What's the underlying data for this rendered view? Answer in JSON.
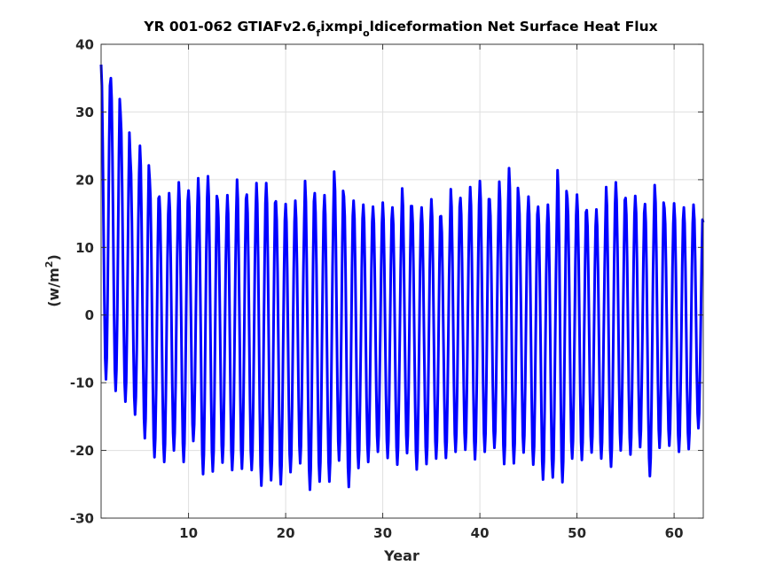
{
  "chart_data": {
    "type": "line",
    "title": {
      "part1": "YR 001-062 GTIAFv2.6",
      "sub1": "f",
      "part2": "ixmpi",
      "sub2": "o",
      "part3": "ldiceformation Net Surface Heat Flux"
    },
    "xlabel": "Year",
    "ylabel": {
      "base": "(w/m",
      "sup": "2",
      "close": ")"
    },
    "xlim": [
      1,
      63
    ],
    "ylim": [
      -30,
      40
    ],
    "xticks": [
      10,
      20,
      30,
      40,
      50,
      60
    ],
    "yticks": [
      -30,
      -20,
      -10,
      0,
      10,
      20,
      30,
      40
    ],
    "grid": true,
    "series": [
      {
        "color": "#0000ff",
        "sampling": "monthly, starting at year 1",
        "annual_max": [
          37.0,
          35.0,
          29.8,
          23.4,
          25.0,
          20.0,
          17.5,
          18.0,
          19.6,
          18.4,
          20.2,
          20.5,
          17.0,
          17.7,
          20.0,
          17.8,
          19.5,
          19.5,
          16.8,
          16.4,
          16.9,
          19.8,
          18.0,
          17.7,
          21.2,
          17.5,
          16.9,
          16.3,
          16.0,
          16.6,
          15.9,
          18.7,
          16.1,
          15.9,
          17.1,
          14.6,
          18.6,
          17.3,
          18.9,
          19.8,
          17.1,
          19.7,
          21.7,
          17.4,
          17.5,
          16.0,
          16.3,
          21.4,
          17.3,
          17.8,
          15.5,
          15.6,
          18.9,
          19.6,
          17.3,
          17.6,
          16.4,
          19.2,
          15.8,
          16.5,
          15.9,
          16.3,
          13.7
        ],
        "annual_min": [
          -9.5,
          -11.2,
          -12.8,
          -14.7,
          -18.2,
          -21.0,
          -21.7,
          -20.0,
          -21.7,
          -18.6,
          -23.5,
          -23.1,
          -21.8,
          -22.9,
          -22.7,
          -22.9,
          -25.2,
          -24.4,
          -25.0,
          -23.2,
          -21.9,
          -25.8,
          -24.6,
          -24.6,
          -21.5,
          -25.4,
          -22.6,
          -21.7,
          -20.2,
          -21.1,
          -22.1,
          -20.4,
          -22.8,
          -22.0,
          -21.2,
          -21.1,
          -20.2,
          -19.9,
          -21.3,
          -20.2,
          -19.6,
          -22.0,
          -21.9,
          -20.3,
          -22.1,
          -24.3,
          -24.0,
          -24.7,
          -21.2,
          -21.4,
          -20.3,
          -21.2,
          -22.4,
          -20.0,
          -20.6,
          -19.5,
          -23.8,
          -19.6,
          -19.3,
          -20.2,
          -19.8,
          -16.7,
          -14.4
        ]
      }
    ]
  }
}
